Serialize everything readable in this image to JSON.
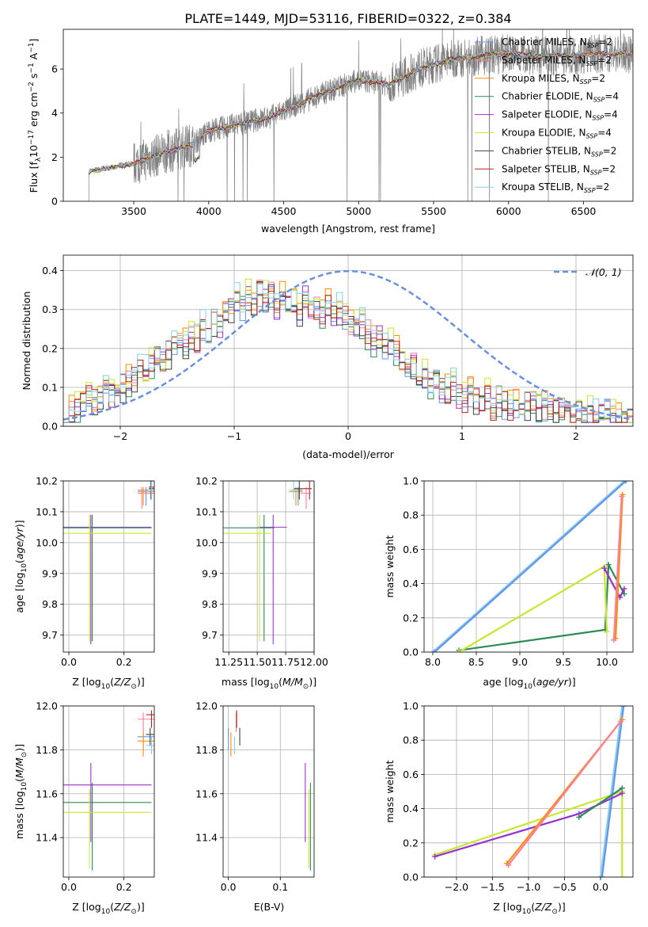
{
  "figure_title": "PLATE=1449, MJD=53116, FIBERID=0322, z=0.384",
  "chart_data": [
    {
      "id": "spectrum",
      "type": "line",
      "xlabel": "wavelength [Angstrom, rest frame]",
      "ylabel": "Flux [f$_\\lambda$10$^{-17}$ erg cm$^{-2}$ s$^{-1}$ A$^{-1}$]",
      "ylabel_parts": {
        "a": "Flux [f",
        "b": "λ",
        "c": "10",
        "d": "−17",
        "e": " erg cm",
        "f": "−2",
        "g": " s",
        "h": "−1",
        "i": " A",
        "j": "−1",
        "k": "]"
      },
      "xlim": [
        3030,
        6830
      ],
      "ylim": [
        0,
        7.8
      ],
      "xticks": [
        3500,
        4000,
        4500,
        5000,
        5500,
        6000,
        6500
      ],
      "yticks": [
        0,
        2,
        4,
        6
      ],
      "grid": false,
      "legend_position": "upper right",
      "data_start": 3200,
      "continuum": [
        [
          3200,
          1.35
        ],
        [
          3400,
          1.6
        ],
        [
          3500,
          1.7
        ],
        [
          3700,
          2.2
        ],
        [
          3900,
          2.6
        ],
        [
          4000,
          3.2
        ],
        [
          4200,
          3.5
        ],
        [
          4400,
          3.8
        ],
        [
          4600,
          4.4
        ],
        [
          4800,
          5.0
        ],
        [
          5000,
          5.5
        ],
        [
          5200,
          5.3
        ],
        [
          5400,
          6.0
        ],
        [
          5600,
          6.4
        ],
        [
          5800,
          6.6
        ],
        [
          6000,
          6.7
        ],
        [
          6200,
          6.6
        ],
        [
          6400,
          6.6
        ],
        [
          6600,
          6.7
        ],
        [
          6700,
          6.7
        ]
      ],
      "series": [
        {
          "name": "Chabrier MILES, N$_{SSP}$=2",
          "label": "Chabrier MILES, N",
          "sub": "SSP",
          "suffix": "=2",
          "color": "#6495ed"
        },
        {
          "name": "Salpeter MILES, N$_{SSP}$=2",
          "label": "Salpeter MILES, N",
          "sub": "SSP",
          "suffix": "=2",
          "color": "#ff7f99"
        },
        {
          "name": "Kroupa MILES, N$_{SSP}$=2",
          "label": "Kroupa MILES, N",
          "sub": "SSP",
          "suffix": "=2",
          "color": "#ff8c00"
        },
        {
          "name": "Chabrier ELODIE, N$_{SSP}$=4",
          "label": "Chabrier ELODIE, N",
          "sub": "SSP",
          "suffix": "=4",
          "color": "#2e8b57"
        },
        {
          "name": "Salpeter ELODIE, N$_{SSP}$=4",
          "label": "Salpeter ELODIE, N",
          "sub": "SSP",
          "suffix": "=4",
          "color": "#9932cc"
        },
        {
          "name": "Kroupa ELODIE, N$_{SSP}$=4",
          "label": "Kroupa ELODIE, N",
          "sub": "SSP",
          "suffix": "=4",
          "color": "#c8e632"
        },
        {
          "name": "Chabrier STELIB, N$_{SSP}$=2",
          "label": "Chabrier STELIB, N",
          "sub": "SSP",
          "suffix": "=2",
          "color": "#404040"
        },
        {
          "name": "Salpeter STELIB, N$_{SSP}$=2",
          "label": "Salpeter STELIB, N",
          "sub": "SSP",
          "suffix": "=2",
          "color": "#b22222"
        },
        {
          "name": "Kroupa STELIB, N$_{SSP}$=2",
          "label": "Kroupa STELIB, N",
          "sub": "SSP",
          "suffix": "=2",
          "color": "#87ceeb"
        }
      ]
    },
    {
      "id": "residuals",
      "type": "line",
      "xlabel": "(data-model)/error",
      "ylabel": "Normed distribution",
      "xlim": [
        -2.5,
        2.5
      ],
      "ylim": [
        0,
        0.44
      ],
      "xticks": [
        -2,
        -1,
        0,
        1,
        2
      ],
      "yticks": [
        0.0,
        0.1,
        0.2,
        0.3,
        0.4
      ],
      "grid": true,
      "legend": "$\\mathcal{N}(0,1)$",
      "legend_text": "𝒩(0, 1)",
      "legend_position": "upper right",
      "gaussian": {
        "mu": 0,
        "sigma": 1,
        "color": "#6a8fdc"
      },
      "bin_width": 0.1,
      "histogram_base": [
        0.03,
        0.04,
        0.05,
        0.06,
        0.07,
        0.06,
        0.07,
        0.1,
        0.08,
        0.11,
        0.1,
        0.12,
        0.13,
        0.15,
        0.14,
        0.16,
        0.18,
        0.17,
        0.19,
        0.2,
        0.22,
        0.21,
        0.24,
        0.22,
        0.26,
        0.23,
        0.27,
        0.26,
        0.29,
        0.31,
        0.33,
        0.31,
        0.34,
        0.32,
        0.35,
        0.33,
        0.34,
        0.31,
        0.33,
        0.3,
        0.32,
        0.3,
        0.33,
        0.31,
        0.3,
        0.29,
        0.31,
        0.29,
        0.3,
        0.28,
        0.27,
        0.26,
        0.27,
        0.24,
        0.22,
        0.23,
        0.2,
        0.21,
        0.19,
        0.17,
        0.15,
        0.16,
        0.14,
        0.13,
        0.11,
        0.12,
        0.1,
        0.09,
        0.11,
        0.08,
        0.07,
        0.09,
        0.07,
        0.06,
        0.08,
        0.05,
        0.07,
        0.06,
        0.05,
        0.06,
        0.04,
        0.06,
        0.05,
        0.04,
        0.05,
        0.04,
        0.04,
        0.05,
        0.04,
        0.03,
        0.04,
        0.03,
        0.04,
        0.03,
        0.03,
        0.04,
        0.03,
        0.02,
        0.03,
        0.02
      ]
    },
    {
      "id": "age_vs_Z",
      "type": "scatter",
      "xlabel": "Z [log$_{10}$($Z/Z_\\odot$)]",
      "ylabel": "age  [log$_{10}$($age/yr$)]",
      "xlim": [
        -0.02,
        0.31
      ],
      "ylim": [
        9.645,
        10.2
      ],
      "xticks": [
        0.0,
        0.2
      ],
      "yticks": [
        9.7,
        9.8,
        9.9,
        10.0,
        10.1,
        10.2
      ],
      "grid": true
    },
    {
      "id": "age_vs_mass",
      "type": "scatter",
      "xlabel": "mass [log$_{10}$($M/M_\\odot$)]",
      "ylabel": "",
      "xlim": [
        11.2,
        12.0
      ],
      "ylim": [
        9.645,
        10.2
      ],
      "xticks": [
        11.25,
        11.5,
        11.75,
        12.0
      ],
      "yticks": [
        9.7,
        9.8,
        9.9,
        10.0,
        10.1,
        10.2
      ],
      "grid": true
    },
    {
      "id": "massweight_vs_age",
      "type": "line",
      "xlabel": "age  [log$_{10}$($age/yr$)]",
      "ylabel": "mass weight",
      "xlim": [
        7.9,
        10.3
      ],
      "ylim": [
        0,
        1.0
      ],
      "xticks": [
        8.0,
        8.5,
        9.0,
        9.5,
        10.0
      ],
      "yticks": [
        0.0,
        0.2,
        0.4,
        0.6,
        0.8,
        1.0
      ],
      "grid": true,
      "lines": [
        {
          "color": "#87ceeb",
          "points": [
            [
              8.0,
              0.0
            ],
            [
              10.2,
              1.0
            ]
          ]
        },
        {
          "color": "#6495ed",
          "points": [
            [
              8.02,
              0.0
            ],
            [
              10.22,
              1.0
            ]
          ]
        },
        {
          "color": "#2e8b57",
          "points": [
            [
              8.3,
              0.01
            ],
            [
              9.98,
              0.13
            ],
            [
              10.02,
              0.51
            ],
            [
              10.2,
              0.34
            ]
          ]
        },
        {
          "color": "#c8e632",
          "points": [
            [
              8.3,
              0.0
            ],
            [
              9.97,
              0.5
            ],
            [
              10.0,
              0.12
            ]
          ]
        },
        {
          "color": "#9932cc",
          "points": [
            [
              9.97,
              0.49
            ],
            [
              10.15,
              0.32
            ],
            [
              10.2,
              0.37
            ]
          ]
        },
        {
          "color": "#ff8c00",
          "points": [
            [
              10.1,
              0.08
            ],
            [
              10.18,
              0.92
            ]
          ]
        },
        {
          "color": "#ff7f99",
          "points": [
            [
              10.08,
              0.07
            ],
            [
              10.17,
              0.91
            ]
          ]
        }
      ]
    },
    {
      "id": "mass_vs_Z",
      "type": "scatter",
      "xlabel": "Z [log$_{10}$($Z/Z_\\odot$)]",
      "ylabel": "mass [log$_{10}$($M/M_\\odot$)]",
      "xlim": [
        -0.02,
        0.31
      ],
      "ylim": [
        11.22,
        12.0
      ],
      "xticks": [
        0.0,
        0.2
      ],
      "yticks": [
        11.4,
        11.6,
        11.8,
        12.0
      ],
      "grid": true
    },
    {
      "id": "mass_vs_EBV",
      "type": "scatter",
      "xlabel": "E(B-V)",
      "ylabel": "",
      "xlim": [
        -0.01,
        0.165
      ],
      "ylim": [
        11.22,
        12.0
      ],
      "xticks": [
        0.0,
        0.1
      ],
      "yticks": [
        11.4,
        11.6,
        11.8,
        12.0
      ],
      "grid": true
    },
    {
      "id": "massweight_vs_Z",
      "type": "line",
      "xlabel": "Z [log$_{10}$($Z/Z_\\odot$)]",
      "ylabel": "mass weight",
      "xlim": [
        -2.45,
        0.45
      ],
      "ylim": [
        0,
        1.0
      ],
      "xticks": [
        -2.0,
        -1.5,
        -1.0,
        -0.5,
        0.0
      ],
      "yticks": [
        0.0,
        0.2,
        0.4,
        0.6,
        0.8,
        1.0
      ],
      "grid": true,
      "lines": [
        {
          "color": "#87ceeb",
          "points": [
            [
              0.0,
              0.0
            ],
            [
              0.3,
              1.0
            ]
          ]
        },
        {
          "color": "#6495ed",
          "points": [
            [
              0.02,
              0.0
            ],
            [
              0.32,
              1.0
            ]
          ]
        },
        {
          "color": "#c8e632",
          "points": [
            [
              -2.3,
              0.13
            ],
            [
              0.3,
              0.5
            ],
            [
              0.3,
              0.0
            ]
          ]
        },
        {
          "color": "#9932cc",
          "points": [
            [
              -2.3,
              0.12
            ],
            [
              -0.3,
              0.37
            ],
            [
              0.3,
              0.49
            ]
          ]
        },
        {
          "color": "#2e8b57",
          "points": [
            [
              -0.3,
              0.35
            ],
            [
              0.3,
              0.52
            ]
          ]
        },
        {
          "color": "#ff8c00",
          "points": [
            [
              -1.3,
              0.08
            ],
            [
              0.3,
              0.92
            ]
          ]
        },
        {
          "color": "#ff7f99",
          "points": [
            [
              -1.28,
              0.07
            ],
            [
              0.28,
              0.91
            ]
          ]
        }
      ]
    }
  ]
}
